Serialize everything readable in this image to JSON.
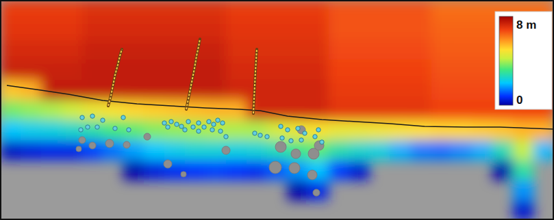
{
  "chart_data": {
    "type": "heatmap",
    "tick_labels": false,
    "color_range": [
      0,
      8
    ],
    "color_ticks": [
      {
        "value": 8,
        "label": "8 m"
      },
      0
    ],
    "cells": [
      [
        6.9,
        6.9,
        6.9,
        6.9,
        7.1,
        7.1,
        7.1,
        7.1,
        7.1,
        7.1,
        7.1,
        6.9,
        6.9,
        6.9,
        6.9,
        6.9,
        6.6,
        6.6,
        6.6,
        6.6,
        6.6,
        6.3,
        6.3,
        6.3,
        6.3,
        6.3,
        6.3
      ],
      [
        7.0,
        7.0,
        7.0,
        7.0,
        7.2,
        7.2,
        7.2,
        7.2,
        7.2,
        7.2,
        7.2,
        7.0,
        7.0,
        7.0,
        7.0,
        7.0,
        6.6,
        6.6,
        6.6,
        6.6,
        6.6,
        6.4,
        6.4,
        6.4,
        6.4,
        6.4,
        6.4
      ],
      [
        7.2,
        7.2,
        7.2,
        7.2,
        7.4,
        7.4,
        7.4,
        7.4,
        7.4,
        7.4,
        7.4,
        7.1,
        7.1,
        7.1,
        7.1,
        7.1,
        6.7,
        6.7,
        6.7,
        6.7,
        6.7,
        6.5,
        6.5,
        6.5,
        6.5,
        6.5,
        6.5
      ],
      [
        7.4,
        7.4,
        7.4,
        7.4,
        7.5,
        7.5,
        7.5,
        7.5,
        7.5,
        7.5,
        7.5,
        7.2,
        7.2,
        7.2,
        7.2,
        7.2,
        6.8,
        6.8,
        6.8,
        6.8,
        6.8,
        6.6,
        6.6,
        6.6,
        6.6,
        6.6,
        6.6
      ],
      [
        5.3,
        5.5,
        7.5,
        7.5,
        7.5,
        7.5,
        7.5,
        7.5,
        7.5,
        7.5,
        7.5,
        7.3,
        7.3,
        7.3,
        7.3,
        7.3,
        6.9,
        6.9,
        6.9,
        6.9,
        6.9,
        6.7,
        6.7,
        6.7,
        6.7,
        6.7,
        6.7
      ],
      [
        3.6,
        3.8,
        4.0,
        4.3,
        4.7,
        4.9,
        5.1,
        5.2,
        5.3,
        5.4,
        5.5,
        5.5,
        7.3,
        7.3,
        7.3,
        7.3,
        7.0,
        7.0,
        7.0,
        7.0,
        7.0,
        6.8,
        6.8,
        6.8,
        6.8,
        6.8,
        6.8
      ],
      [
        2.0,
        2.2,
        2.3,
        2.5,
        2.8,
        3.2,
        3.4,
        3.7,
        3.8,
        3.9,
        4.0,
        4.0,
        4.0,
        4.4,
        4.7,
        4.9,
        4.7,
        4.7,
        4.8,
        4.9,
        5.0,
        5.1,
        5.1,
        5.2,
        5.3,
        5.5,
        5.5
      ],
      [
        0.3,
        0.5,
        0.6,
        0.6,
        0.9,
        1.3,
        1.7,
        2.0,
        2.2,
        2.4,
        2.4,
        2.3,
        2.4,
        2.7,
        3.1,
        3.4,
        2.8,
        2.5,
        2.3,
        1.8,
        1.4,
        1.3,
        1.5,
        1.8,
        2.7,
        4.2,
        1.9
      ],
      [
        null,
        null,
        null,
        null,
        null,
        null,
        0.1,
        0.5,
        0.7,
        0.8,
        0.9,
        0.8,
        0.7,
        1.1,
        1.6,
        2.0,
        0.9,
        0.4,
        null,
        null,
        null,
        null,
        null,
        null,
        0.1,
        2.9,
        null
      ],
      [
        null,
        null,
        null,
        null,
        null,
        null,
        null,
        null,
        null,
        null,
        null,
        null,
        null,
        null,
        0.1,
        0.6,
        null,
        null,
        null,
        null,
        null,
        null,
        null,
        null,
        null,
        1.6,
        null
      ],
      [
        null,
        null,
        null,
        null,
        null,
        null,
        null,
        null,
        null,
        null,
        null,
        null,
        null,
        null,
        null,
        null,
        null,
        null,
        null,
        null,
        null,
        null,
        null,
        null,
        null,
        0.4,
        null
      ]
    ]
  }
}
